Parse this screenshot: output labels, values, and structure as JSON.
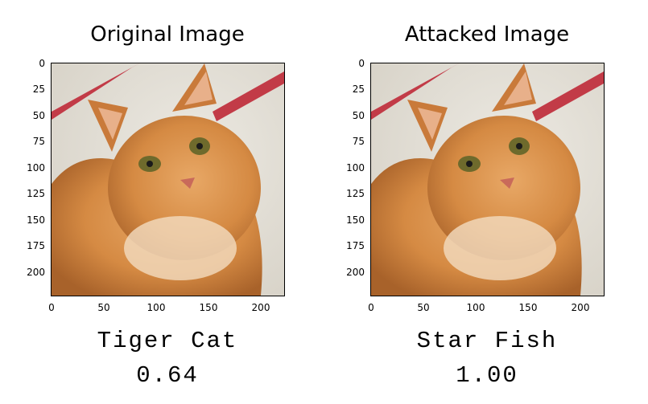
{
  "panels": [
    {
      "title": "Original Image",
      "prediction_label": "Tiger Cat",
      "confidence": "0.64"
    },
    {
      "title": "Attacked Image",
      "prediction_label": "Star Fish",
      "confidence": "1.00"
    }
  ],
  "axes": {
    "x_ticks": [
      "0",
      "50",
      "100",
      "150",
      "200"
    ],
    "y_ticks": [
      "0",
      "25",
      "50",
      "75",
      "100",
      "125",
      "150",
      "175",
      "200"
    ]
  },
  "image_subject": "orange-tabby-cat",
  "colors": {
    "fur": "#d98d45",
    "background": "#e9e5dc",
    "red_stripe": "#c23b47"
  }
}
